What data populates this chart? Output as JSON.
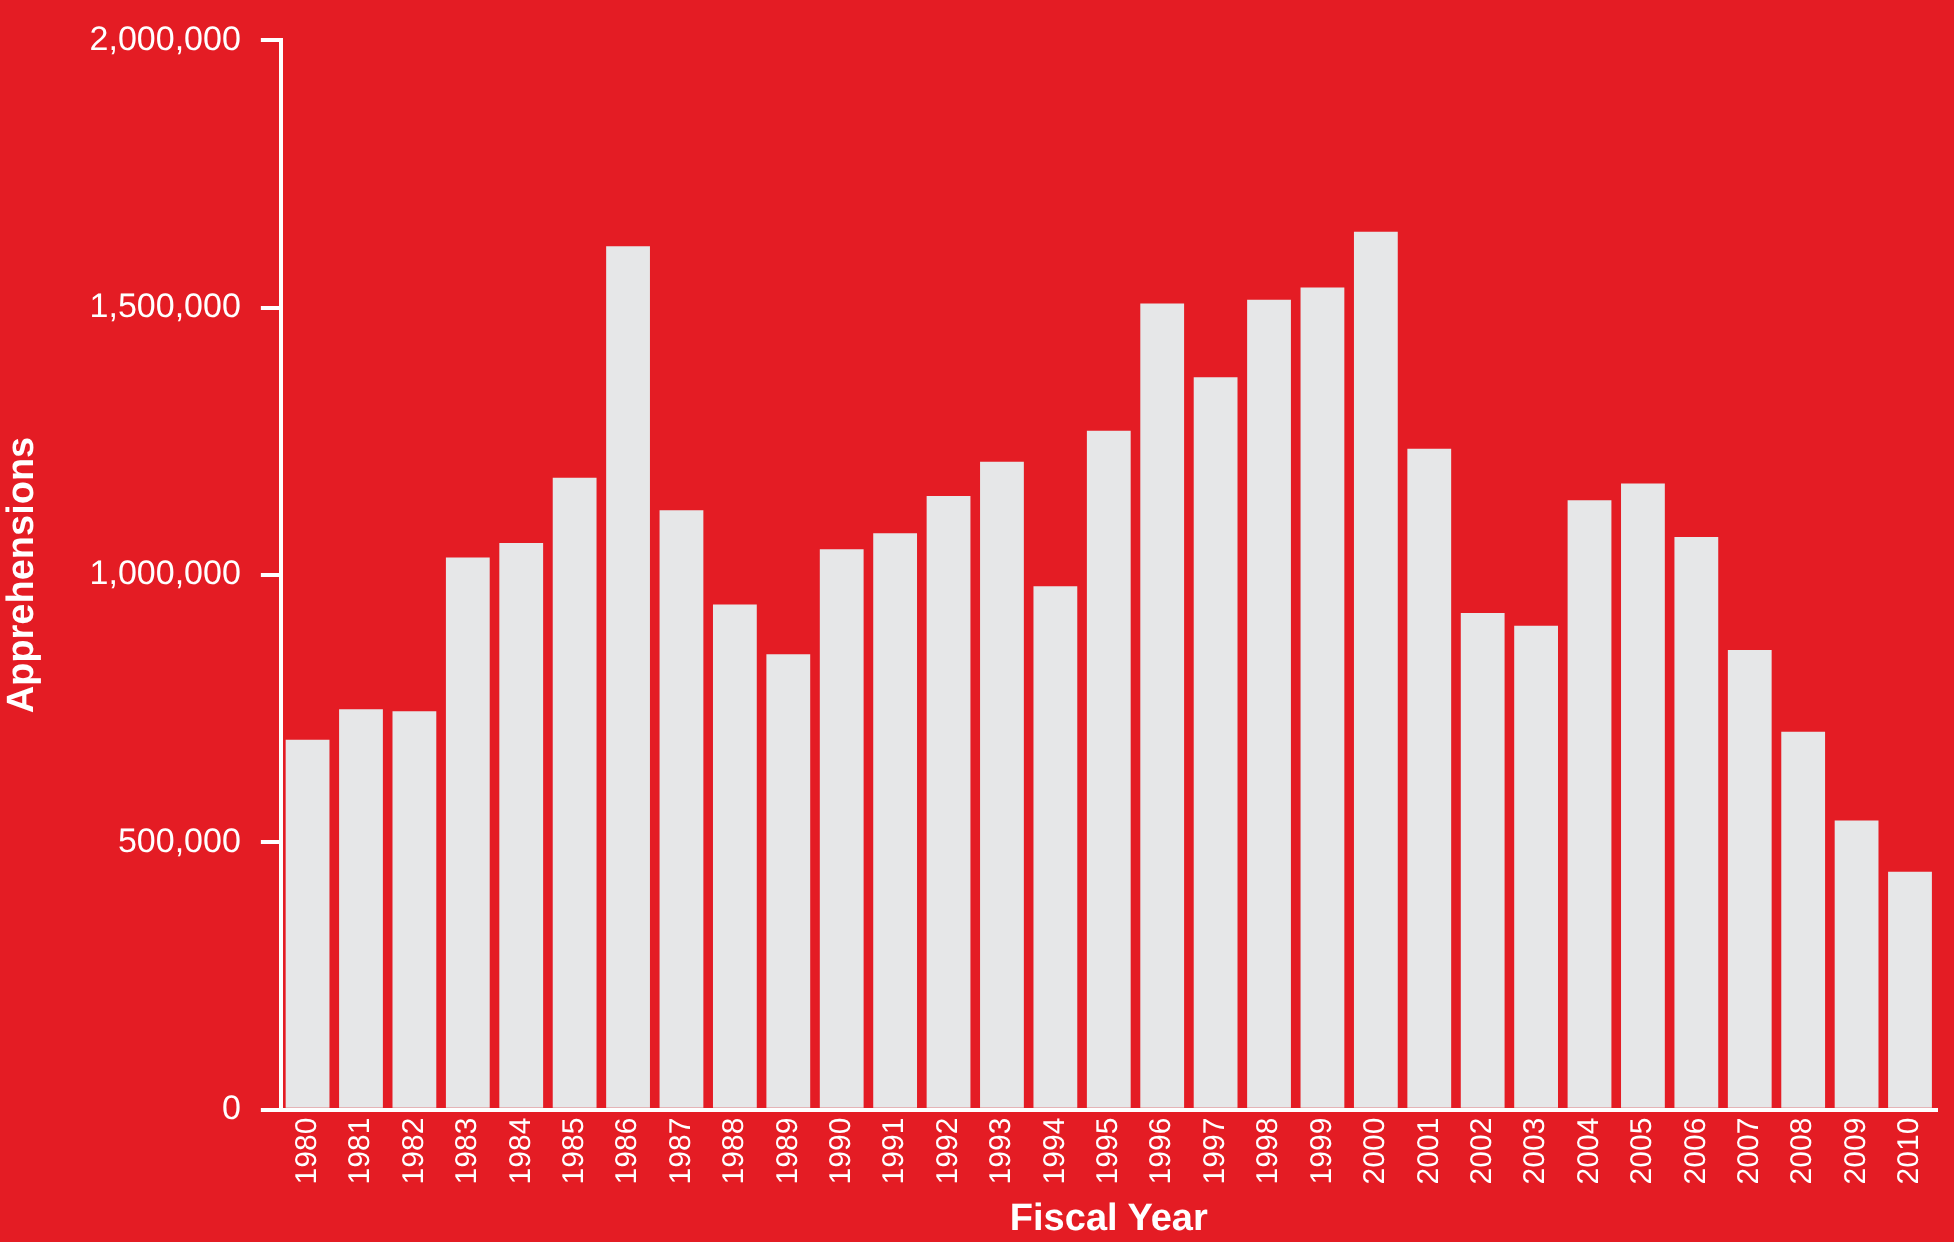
{
  "chart_data": {
    "type": "bar",
    "xlabel": "Fiscal Year",
    "ylabel": "Apprehensions",
    "categories": [
      "1980",
      "1981",
      "1982",
      "1983",
      "1984",
      "1985",
      "1986",
      "1987",
      "1988",
      "1989",
      "1990",
      "1991",
      "1992",
      "1993",
      "1994",
      "1995",
      "1996",
      "1997",
      "1998",
      "1999",
      "2000",
      "2001",
      "2002",
      "2003",
      "2004",
      "2005",
      "2006",
      "2007",
      "2008",
      "2009",
      "2010"
    ],
    "values": [
      692000,
      749000,
      745000,
      1033000,
      1060000,
      1182000,
      1615000,
      1121000,
      945000,
      852000,
      1048000,
      1078000,
      1148000,
      1212000,
      979000,
      1270000,
      1508000,
      1370000,
      1515000,
      1538000,
      1642000,
      1236000,
      929000,
      905000,
      1140000,
      1171000,
      1071000,
      860000,
      707000,
      541000,
      445000
    ],
    "color": "#e6e7e8",
    "ylim": [
      0,
      2000000
    ],
    "yticks": [
      0,
      {
        "value": 500000,
        "label": "500,000"
      },
      {
        "value": 1000000,
        "label": "1,000,000"
      },
      {
        "value": 1500000,
        "label": "1,500,000"
      },
      {
        "value": 2000000,
        "label": "2,000,000"
      }
    ]
  }
}
